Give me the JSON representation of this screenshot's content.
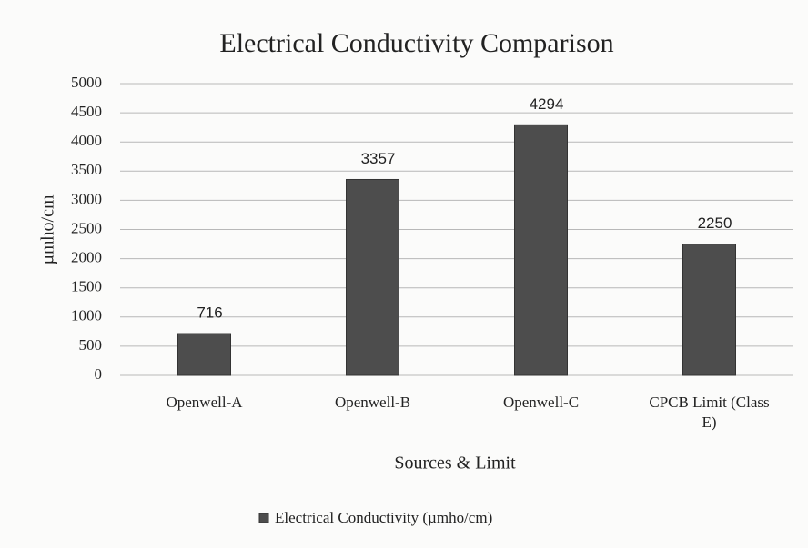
{
  "chart_data": {
    "type": "bar",
    "title": "Electrical Conductivity Comparison",
    "x_label": "Sources & Limit",
    "y_label": "µmho/cm",
    "categories": [
      "Openwell-A",
      "Openwell-B",
      "Openwell-C",
      "CPCB Limit (Class E)"
    ],
    "series": [
      {
        "name": "Electrical Conductivity (µmho/cm)",
        "color": "#4d4d4d",
        "values": [
          716,
          3357,
          4294,
          2250
        ]
      }
    ],
    "ylim": [
      0,
      5000
    ],
    "yticks": [
      0,
      500,
      1000,
      1500,
      2000,
      2500,
      3000,
      3500,
      4000,
      4500,
      5000
    ],
    "grid": true,
    "legend": "bottom",
    "data_labels": true
  }
}
